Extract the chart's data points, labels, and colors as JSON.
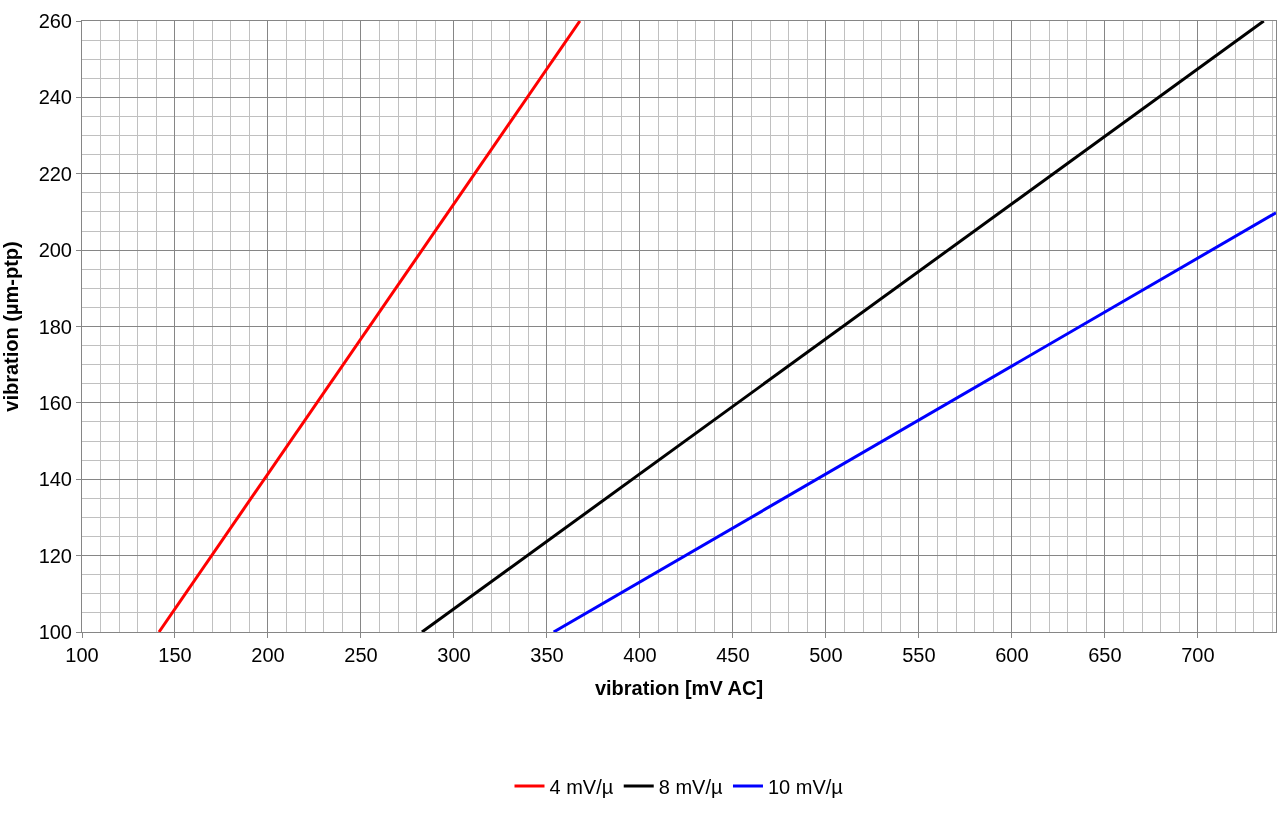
{
  "chart_data": {
    "type": "line",
    "xlabel": "vibration [mV AC]",
    "ylabel": "vibration (µm-ptp)",
    "series": [
      {
        "name": "4 mV/µ",
        "color": "#ff0000",
        "x": [
          141.4,
          367.7
        ],
        "values": [
          100,
          260
        ]
      },
      {
        "name": "8 mV/µ",
        "color": "#000000",
        "x": [
          282.8,
          735.4
        ],
        "values": [
          100,
          260
        ]
      },
      {
        "name": "10 mV/µ",
        "color": "#0000ff",
        "x": [
          353.6,
          742
        ],
        "values": [
          100,
          209.8
        ]
      }
    ],
    "xlim": [
      100,
      742
    ],
    "ylim": [
      100,
      260
    ],
    "xticks": [
      100,
      {
        "value": 110,
        "label": null
      },
      {
        "value": 120,
        "label": null
      },
      {
        "value": 130,
        "label": null
      },
      {
        "value": 140,
        "label": null
      },
      150,
      {
        "value": 160,
        "label": null
      },
      {
        "value": 170,
        "label": null
      },
      {
        "value": 180,
        "label": null
      },
      {
        "value": 190,
        "label": null
      },
      200,
      {
        "value": 210,
        "label": null
      },
      {
        "value": 220,
        "label": null
      },
      {
        "value": 230,
        "label": null
      },
      {
        "value": 240,
        "label": null
      },
      250,
      {
        "value": 260,
        "label": null
      },
      {
        "value": 270,
        "label": null
      },
      {
        "value": 280,
        "label": null
      },
      {
        "value": 290,
        "label": null
      },
      300,
      {
        "value": 310,
        "label": null
      },
      {
        "value": 320,
        "label": null
      },
      {
        "value": 330,
        "label": null
      },
      {
        "value": 340,
        "label": null
      },
      350,
      {
        "value": 360,
        "label": null
      },
      {
        "value": 370,
        "label": null
      },
      {
        "value": 380,
        "label": null
      },
      {
        "value": 390,
        "label": null
      },
      400,
      {
        "value": 410,
        "label": null
      },
      {
        "value": 420,
        "label": null
      },
      {
        "value": 430,
        "label": null
      },
      {
        "value": 440,
        "label": null
      },
      450,
      {
        "value": 460,
        "label": null
      },
      {
        "value": 470,
        "label": null
      },
      {
        "value": 480,
        "label": null
      },
      {
        "value": 490,
        "label": null
      },
      500,
      {
        "value": 510,
        "label": null
      },
      {
        "value": 520,
        "label": null
      },
      {
        "value": 530,
        "label": null
      },
      {
        "value": 540,
        "label": null
      },
      550,
      {
        "value": 560,
        "label": null
      },
      {
        "value": 570,
        "label": null
      },
      {
        "value": 580,
        "label": null
      },
      {
        "value": 590,
        "label": null
      },
      600,
      {
        "value": 610,
        "label": null
      },
      {
        "value": 620,
        "label": null
      },
      {
        "value": 630,
        "label": null
      },
      {
        "value": 640,
        "label": null
      },
      650,
      {
        "value": 660,
        "label": null
      },
      {
        "value": 670,
        "label": null
      },
      {
        "value": 680,
        "label": null
      },
      {
        "value": 690,
        "label": null
      },
      700,
      {
        "value": 710,
        "label": null
      },
      {
        "value": 720,
        "label": null
      },
      {
        "value": 730,
        "label": null
      },
      {
        "value": 740,
        "label": null
      }
    ],
    "yticks": [
      100,
      {
        "value": 105,
        "label": null
      },
      {
        "value": 110,
        "label": null
      },
      {
        "value": 115,
        "label": null
      },
      120,
      {
        "value": 125,
        "label": null
      },
      {
        "value": 130,
        "label": null
      },
      {
        "value": 135,
        "label": null
      },
      140,
      {
        "value": 145,
        "label": null
      },
      {
        "value": 150,
        "label": null
      },
      {
        "value": 155,
        "label": null
      },
      160,
      {
        "value": 165,
        "label": null
      },
      {
        "value": 170,
        "label": null
      },
      {
        "value": 175,
        "label": null
      },
      180,
      {
        "value": 185,
        "label": null
      },
      {
        "value": 190,
        "label": null
      },
      {
        "value": 195,
        "label": null
      },
      200,
      {
        "value": 205,
        "label": null
      },
      {
        "value": 210,
        "label": null
      },
      {
        "value": 215,
        "label": null
      },
      220,
      {
        "value": 225,
        "label": null
      },
      {
        "value": 230,
        "label": null
      },
      {
        "value": 235,
        "label": null
      },
      240,
      {
        "value": 245,
        "label": null
      },
      {
        "value": 250,
        "label": null
      },
      {
        "value": 255,
        "label": null
      },
      260
    ],
    "grid": true,
    "legend": "bottom",
    "marker": "none",
    "line_style": "solid"
  }
}
